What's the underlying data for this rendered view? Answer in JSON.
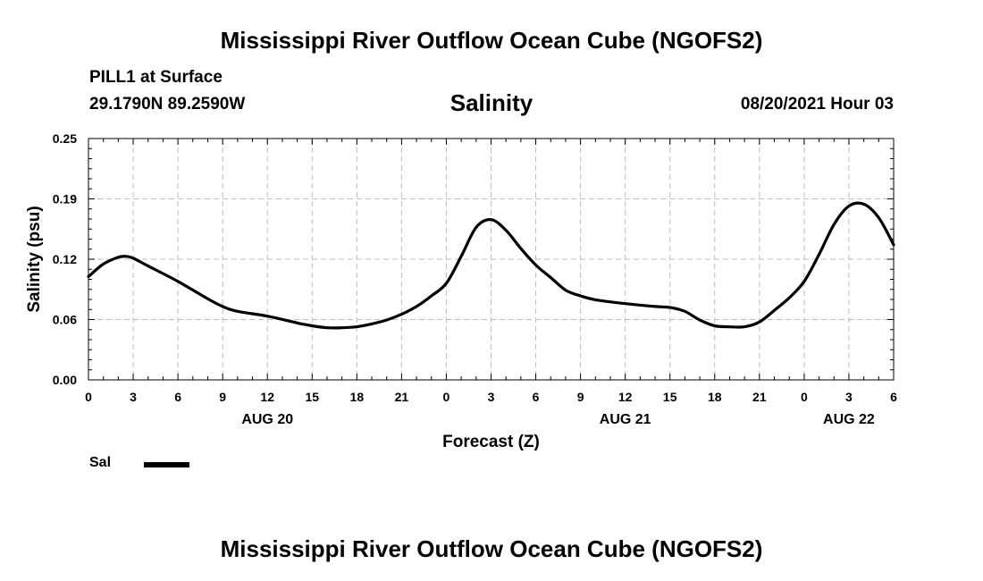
{
  "header": {
    "title": "Mississippi River Outflow Ocean Cube (NGOFS2)",
    "station": "PILL1 at Surface",
    "coords": "29.1790N  89.2590W",
    "chart_title": "Salinity",
    "datetime": "08/20/2021 Hour 03"
  },
  "footer": {
    "title": "Mississippi River Outflow Ocean Cube (NGOFS2)"
  },
  "chart_data": {
    "type": "line",
    "title": "Salinity",
    "xlabel": "Forecast (Z)",
    "ylabel": "Salinity (psu)",
    "xlim": [
      0,
      54
    ],
    "ylim": [
      0,
      0.25
    ],
    "yticks": [
      "0.00",
      "0.06",
      "0.12",
      "0.19",
      "0.25"
    ],
    "ytick_values": [
      0,
      0.0625,
      0.125,
      0.1875,
      0.25
    ],
    "xticks": [
      "0",
      "3",
      "6",
      "9",
      "12",
      "15",
      "18",
      "21",
      "0",
      "3",
      "6",
      "9",
      "12",
      "15",
      "18",
      "21",
      "0",
      "3",
      "6"
    ],
    "day_labels": [
      {
        "label": "AUG 20",
        "x": 12
      },
      {
        "label": "AUG 21",
        "x": 36
      },
      {
        "label": "AUG 22",
        "x": 51
      }
    ],
    "grid": true,
    "legend": "bottom-left",
    "series": [
      {
        "name": "Sal",
        "color": "#000000",
        "x": [
          0,
          1,
          2,
          2.5,
          3,
          4,
          6,
          8,
          9,
          10,
          12,
          14,
          15,
          16,
          17,
          18,
          19,
          20,
          21,
          22,
          23,
          24,
          25,
          26,
          27,
          28,
          29,
          30,
          31,
          32,
          33,
          34,
          36,
          38,
          39,
          40,
          41,
          42,
          43,
          44,
          45,
          46,
          47,
          48,
          49,
          50,
          51,
          52,
          53,
          54
        ],
        "values": [
          0.107,
          0.12,
          0.127,
          0.128,
          0.126,
          0.118,
          0.102,
          0.084,
          0.076,
          0.071,
          0.066,
          0.059,
          0.056,
          0.054,
          0.054,
          0.055,
          0.058,
          0.062,
          0.068,
          0.076,
          0.087,
          0.1,
          0.128,
          0.158,
          0.166,
          0.155,
          0.136,
          0.119,
          0.106,
          0.093,
          0.087,
          0.083,
          0.079,
          0.076,
          0.075,
          0.071,
          0.062,
          0.056,
          0.055,
          0.055,
          0.06,
          0.072,
          0.085,
          0.102,
          0.13,
          0.161,
          0.18,
          0.182,
          0.168,
          0.14
        ]
      }
    ]
  }
}
